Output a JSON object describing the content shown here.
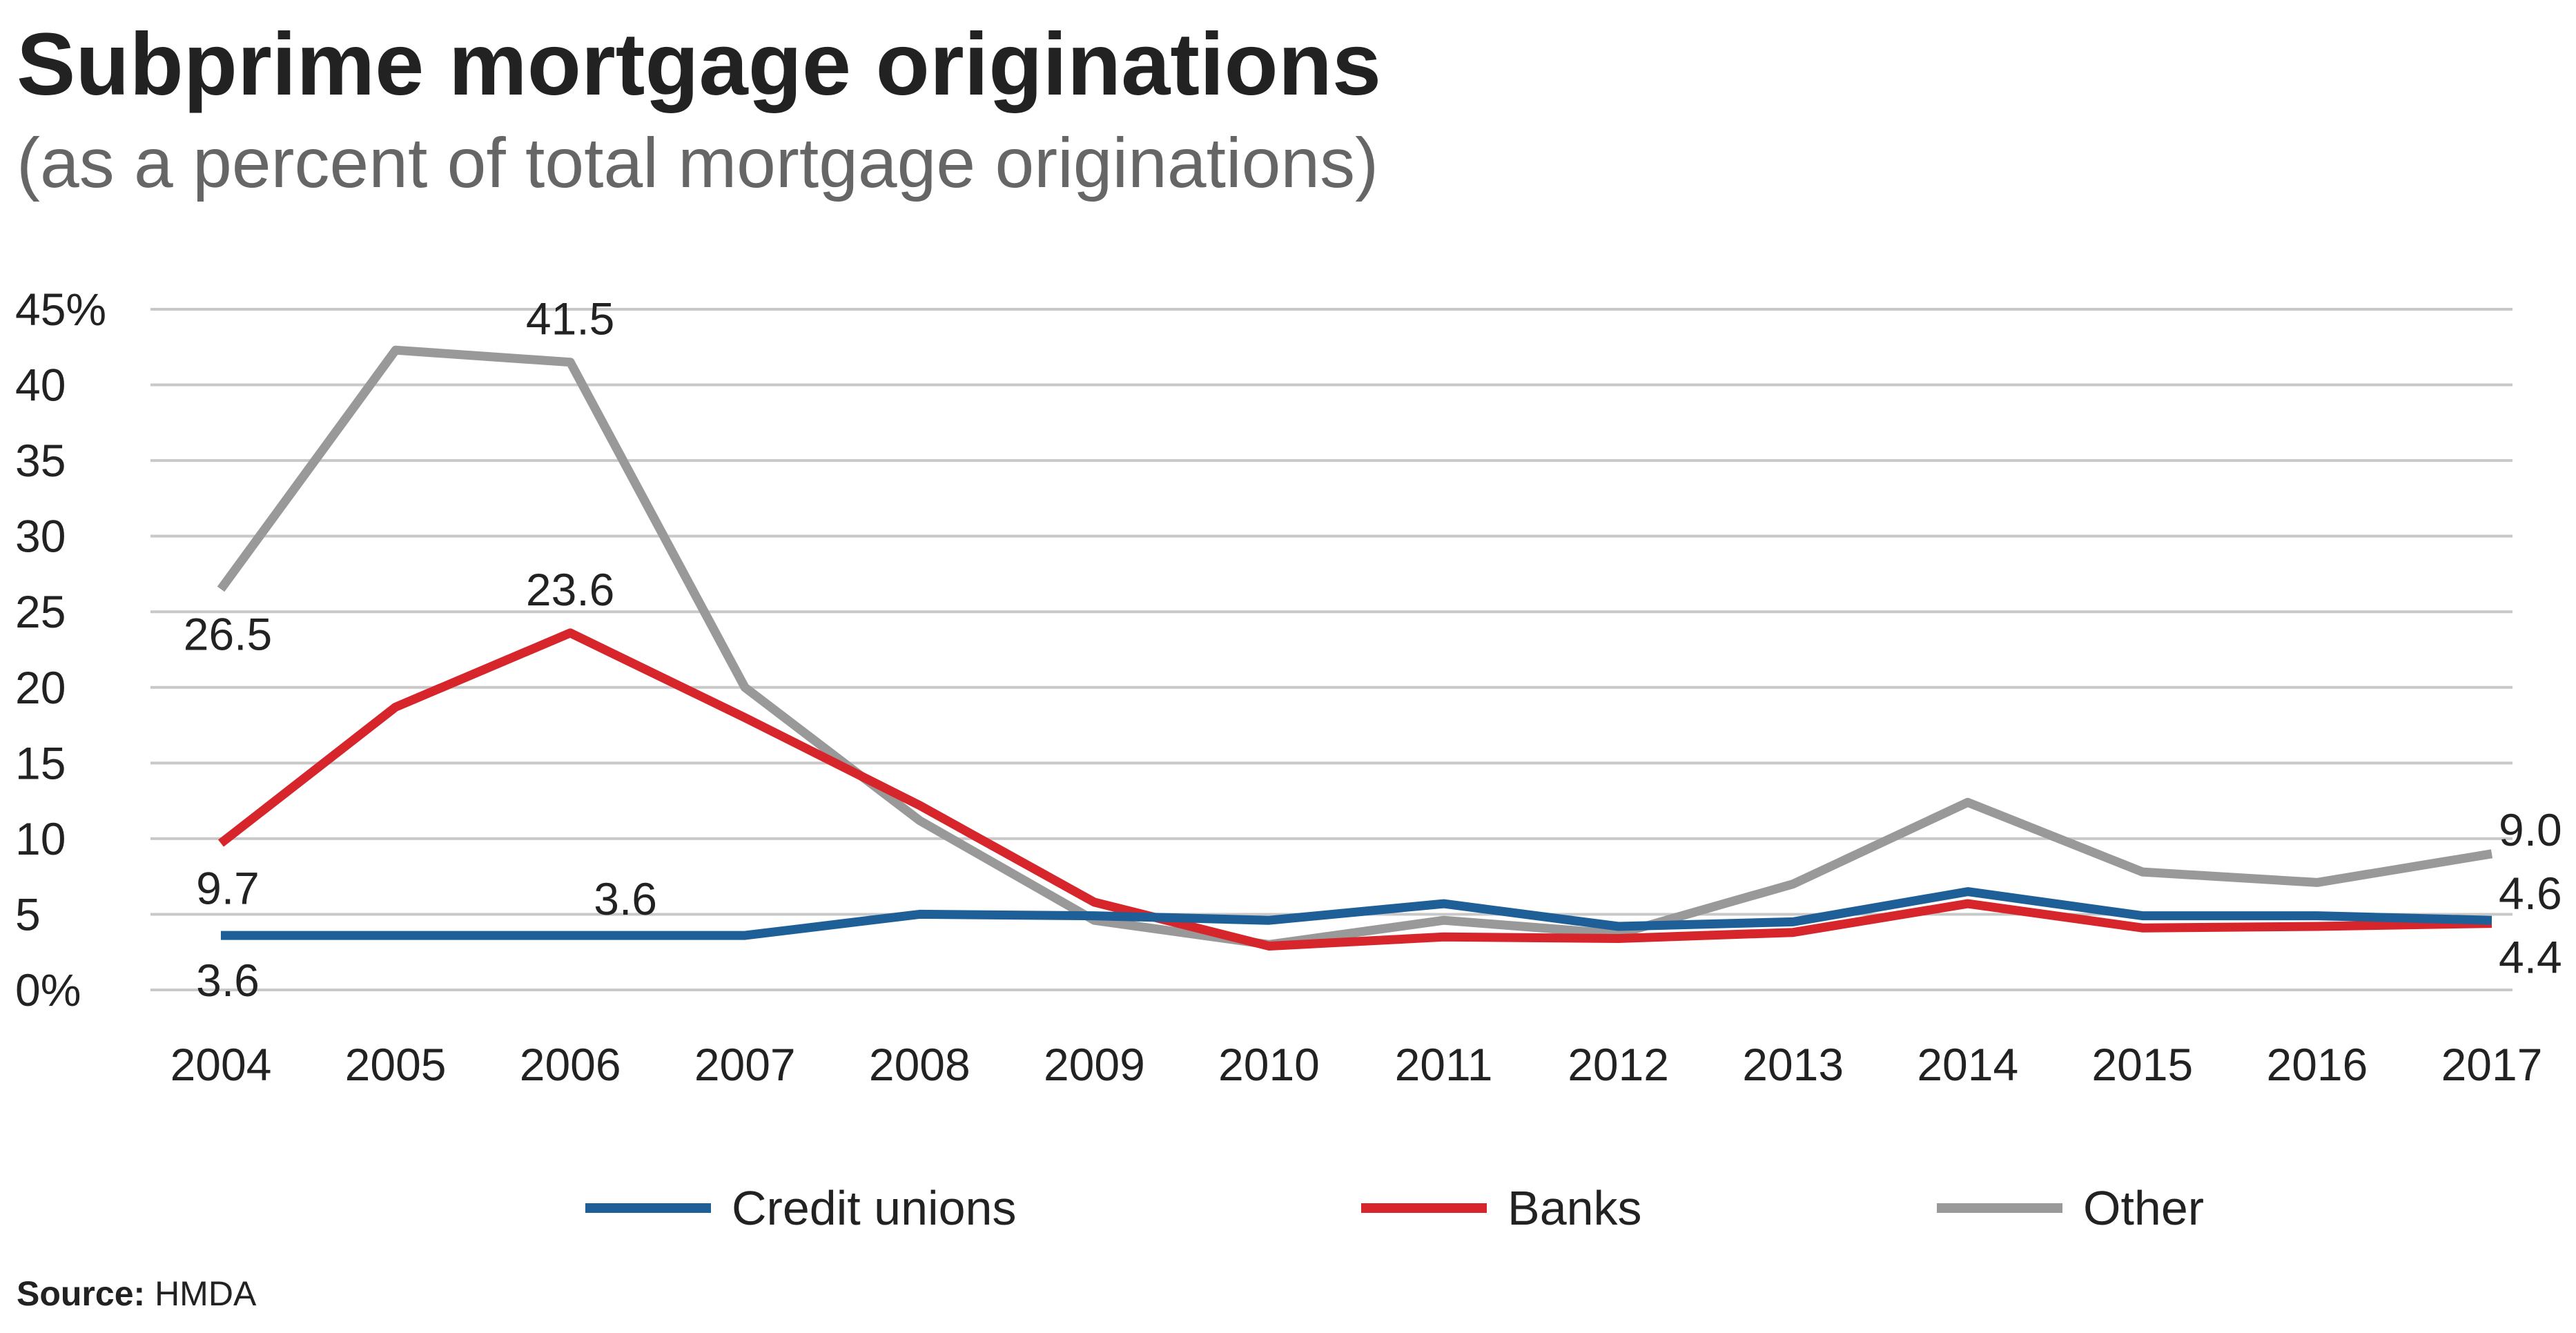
{
  "colors": {
    "credit_unions": "#1f5f97",
    "banks": "#d7262b",
    "other": "#999999",
    "grid": "#c8c8c8"
  },
  "source": {
    "label": "Source:",
    "value": "HMDA"
  },
  "chart_data": {
    "type": "line",
    "title": "Subprime mortgage originations",
    "subtitle": "(as a percent of total mortgage originations)",
    "xlabel": "",
    "ylabel": "",
    "x": [
      "2004",
      "2005",
      "2006",
      "2007",
      "2008",
      "2009",
      "2010",
      "2011",
      "2012",
      "2013",
      "2014",
      "2015",
      "2016",
      "2017"
    ],
    "y_ticks": [
      "45%",
      "40",
      "35",
      "30",
      "25",
      "20",
      "15",
      "10",
      "5",
      "0%"
    ],
    "y_tick_values": [
      45,
      40,
      35,
      30,
      25,
      20,
      15,
      10,
      5,
      0
    ],
    "ylim": [
      0,
      45
    ],
    "grid": true,
    "legend_position": "bottom",
    "series": [
      {
        "name": "Credit unions",
        "color_key": "credit_unions",
        "values": [
          3.6,
          3.6,
          3.6,
          3.6,
          5.0,
          4.9,
          4.6,
          5.7,
          4.2,
          4.5,
          6.5,
          4.9,
          4.9,
          4.6
        ]
      },
      {
        "name": "Banks",
        "color_key": "banks",
        "values": [
          9.7,
          18.7,
          23.6,
          18.0,
          12.2,
          5.8,
          2.9,
          3.5,
          3.4,
          3.8,
          5.7,
          4.1,
          4.2,
          4.4
        ]
      },
      {
        "name": "Other",
        "color_key": "other",
        "values": [
          26.5,
          42.3,
          41.5,
          20.0,
          11.2,
          4.6,
          3.0,
          4.6,
          3.7,
          7.0,
          12.4,
          7.8,
          7.1,
          9.0
        ]
      }
    ],
    "annotations": [
      {
        "series": 2,
        "index": 0,
        "text": "26.5",
        "place": "below"
      },
      {
        "series": 2,
        "index": 2,
        "text": "41.5",
        "place": "above"
      },
      {
        "series": 2,
        "index": 13,
        "text": "9.0",
        "place": "right"
      },
      {
        "series": 1,
        "index": 2,
        "text": "23.6",
        "place": "above"
      },
      {
        "series": 1,
        "index": 0,
        "text": "9.7",
        "place": "below"
      },
      {
        "series": 1,
        "index": 13,
        "text": "4.4",
        "place": "right-below"
      },
      {
        "series": 0,
        "index": 2,
        "text": "3.6",
        "place": "above"
      },
      {
        "series": 0,
        "index": 0,
        "text": "3.6",
        "place": "below"
      },
      {
        "series": 0,
        "index": 13,
        "text": "4.6",
        "place": "right-above"
      }
    ]
  }
}
